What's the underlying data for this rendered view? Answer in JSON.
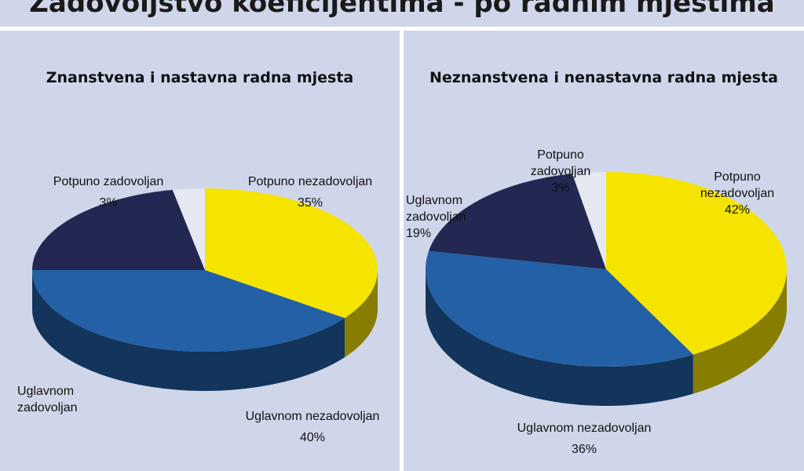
{
  "page_title": "Zadovoljstvo koeficijentima - po radnim mjestima",
  "colors": {
    "potpuno_nezadovoljan": "#f5e400",
    "uglavnom_nezadovoljan": "#2360a5",
    "uglavnom_zadovoljan": "#222852",
    "potpuno_zadovoljan": "#e5e7f1",
    "background": "#d0d6ea"
  },
  "chart_data": [
    {
      "type": "pie",
      "title": "Znanstvena i nastavna radna mjesta",
      "slices": [
        {
          "label": "Potpuno nezadovoljan",
          "value": 35,
          "value_text": "35%"
        },
        {
          "label": "Uglavnom nezadovoljan",
          "value": 40,
          "value_text": "40%"
        },
        {
          "label": "Uglavnom zadovoljan",
          "value": 22,
          "value_text": ""
        },
        {
          "label": "Potpuno zadovoljan",
          "value": 3,
          "value_text": "3%"
        }
      ]
    },
    {
      "type": "pie",
      "title": "Neznanstvena i nenastavna radna mjesta",
      "slices": [
        {
          "label": "Potpuno nezadovoljan",
          "value": 42,
          "value_text": "42%"
        },
        {
          "label": "Uglavnom nezadovoljan",
          "value": 36,
          "value_text": "36%"
        },
        {
          "label": "Uglavnom zadovoljan",
          "value": 19,
          "value_text": "19%"
        },
        {
          "label": "Potpuno zadovoljan",
          "value": 3,
          "value_text": "3%"
        }
      ]
    }
  ],
  "labels": {
    "left": {
      "pz_line1": "Potpuno zadovoljan",
      "pz_line2": "3%",
      "pn_line1": "Potpuno nezadovoljan",
      "pn_line2": "35%",
      "uz_line1": "Uglavnom",
      "uz_line2": "zadovoljan",
      "un_line1": "Uglavnom nezadovoljan",
      "un_line2": "40%"
    },
    "right": {
      "pz_line1": "Potpuno",
      "pz_line2": "zadovoljan",
      "pz_line3": "3%",
      "pn_line1": "Potpuno",
      "pn_line2": "nezadovoljan",
      "pn_line3": "42%",
      "uz_line1": "Uglavnom",
      "uz_line2": "zadovoljan",
      "uz_line3": "19%",
      "un_line1": "Uglavnom nezadovoljan",
      "un_line2": "36%"
    }
  }
}
